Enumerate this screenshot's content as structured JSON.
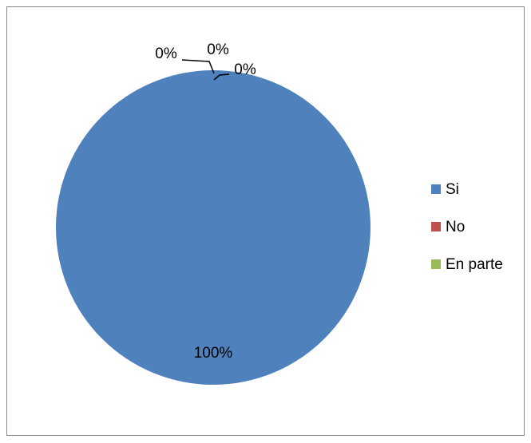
{
  "chart_data": {
    "type": "pie",
    "categories": [
      "Si",
      "No",
      "En parte",
      null
    ],
    "values": [
      100,
      0,
      0,
      0
    ],
    "value_labels": [
      "100%",
      "0%",
      "0%",
      "0%"
    ],
    "colors": [
      "#4f81bd",
      "#c0504d",
      "#9bbb59",
      "#8064a2"
    ],
    "legend": "right"
  }
}
